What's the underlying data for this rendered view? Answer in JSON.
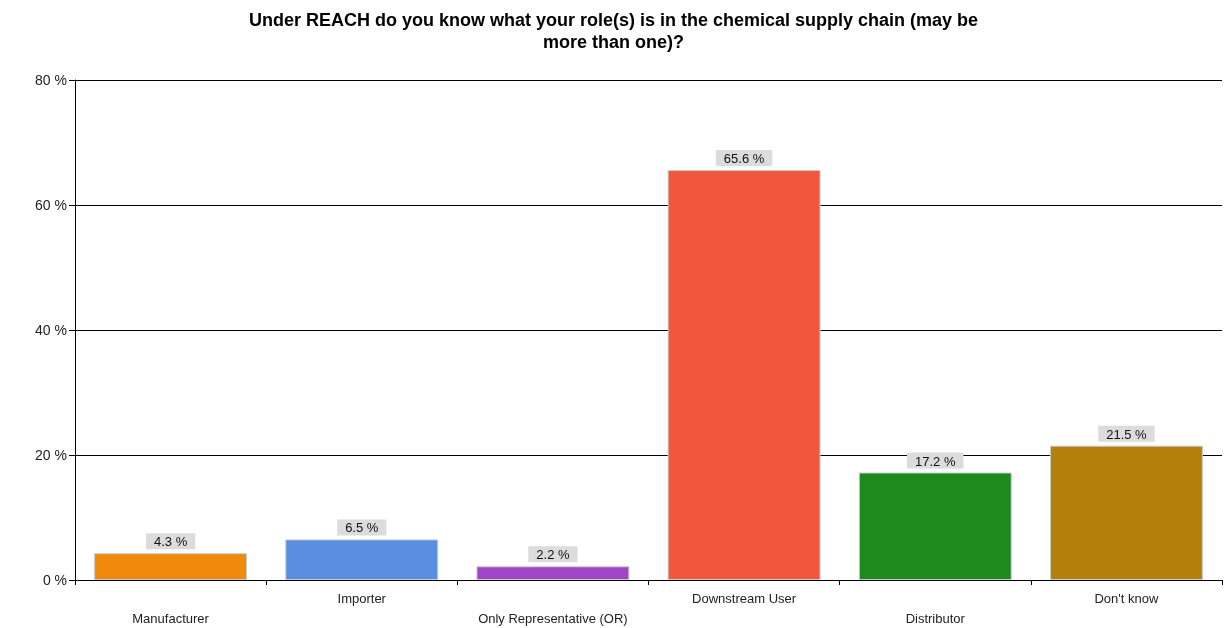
{
  "chart_data": {
    "type": "bar",
    "title": "Under REACH do you know what your role(s) is in the chemical supply chain (may be\nmore than one)?",
    "categories": [
      "Manufacturer",
      "Importer",
      "Only Representative (OR)",
      "Downstream User",
      "Distributor",
      "Don't know"
    ],
    "values": [
      4.3,
      6.5,
      2.2,
      65.6,
      17.2,
      21.5
    ],
    "colors": [
      "#f08a0c",
      "#5a8ee2",
      "#a044c8",
      "#f2573d",
      "#1d8a1d",
      "#b3800c"
    ],
    "value_labels": [
      "4.3 %",
      "6.5 %",
      "2.2 %",
      "65.6 %",
      "17.2 %",
      "21.5 %"
    ],
    "ylim": [
      0,
      80
    ],
    "yticks": [
      {
        "value": 0,
        "label": "0 %"
      },
      {
        "value": 20,
        "label": "20 %"
      },
      {
        "value": 40,
        "label": "40 %"
      },
      {
        "value": 60,
        "label": "60 %"
      },
      {
        "value": 80,
        "label": "80 %"
      }
    ],
    "grid": "y"
  }
}
